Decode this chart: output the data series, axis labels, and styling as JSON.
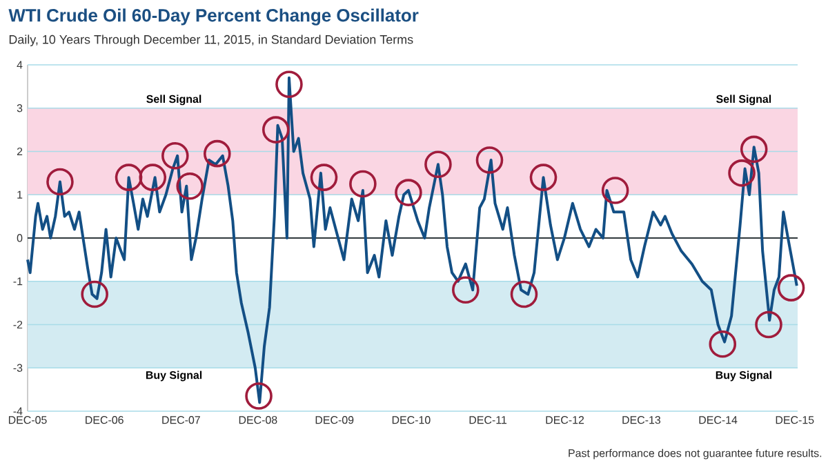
{
  "chart_data": {
    "type": "line",
    "title": "WTI Crude Oil 60-Day Percent Change Oscillator",
    "subtitle": "Daily, 10 Years Through December 11, 2015, in Standard Deviation Terms",
    "annotations": [
      "Past performance does not guarantee future results."
    ],
    "series": [
      {
        "color": "#134f85",
        "x": [
          "2005-12-01",
          "2005-12-13",
          "2006-01-08",
          "2006-01-19",
          "2006-02-10",
          "2006-03-03",
          "2006-03-20",
          "2006-04-12",
          "2006-05-04",
          "2006-05-26",
          "2006-06-16",
          "2006-07-12",
          "2006-08-03",
          "2006-08-25",
          "2006-09-13",
          "2006-10-04",
          "2006-10-27",
          "2006-11-18",
          "2006-12-09",
          "2007-01-01",
          "2007-01-26",
          "2007-02-18",
          "2007-03-06",
          "2007-03-27",
          "2007-04-19",
          "2007-05-11",
          "2007-06-02",
          "2007-06-24",
          "2007-07-30",
          "2007-08-21",
          "2007-09-20",
          "2007-10-23",
          "2007-11-14",
          "2007-12-05",
          "2007-12-27",
          "2008-01-19",
          "2008-02-10",
          "2008-03-10",
          "2008-04-12",
          "2008-05-14",
          "2008-06-16",
          "2008-07-12",
          "2008-08-03",
          "2008-08-21",
          "2008-09-13",
          "2008-10-16",
          "2008-11-18",
          "2008-12-09",
          "2009-01-01",
          "2009-01-26",
          "2009-02-18",
          "2009-03-06",
          "2009-03-27",
          "2009-04-19",
          "2009-04-29",
          "2009-05-21",
          "2009-06-13",
          "2009-07-04",
          "2009-08-07",
          "2009-08-25",
          "2009-09-27",
          "2009-10-19",
          "2009-11-10",
          "2009-12-13",
          "2010-01-15",
          "2010-02-21",
          "2010-03-24",
          "2010-04-15",
          "2010-05-07",
          "2010-06-09",
          "2010-07-01",
          "2010-08-03",
          "2010-09-02",
          "2010-10-04",
          "2010-10-27",
          "2010-11-18",
          "2011-01-01",
          "2011-02-03",
          "2011-02-25",
          "2011-04-08",
          "2011-04-29",
          "2011-05-21",
          "2011-06-13",
          "2011-07-12",
          "2011-08-17",
          "2011-09-20",
          "2011-10-23",
          "2011-11-14",
          "2011-12-16",
          "2012-01-04",
          "2012-02-10",
          "2012-03-03",
          "2012-04-05",
          "2012-05-07",
          "2012-06-09",
          "2012-07-08",
          "2012-08-21",
          "2012-09-24",
          "2012-10-27",
          "2012-11-29",
          "2013-01-08",
          "2013-02-14",
          "2013-03-27",
          "2013-04-29",
          "2013-06-02",
          "2013-06-20",
          "2013-07-23",
          "2013-09-09",
          "2013-10-12",
          "2013-11-14",
          "2013-12-16",
          "2014-01-26",
          "2014-03-03",
          "2014-03-24",
          "2014-04-26",
          "2014-06-09",
          "2014-07-30",
          "2014-09-17",
          "2014-10-30",
          "2014-12-01",
          "2015-01-01",
          "2015-02-03",
          "2015-03-16",
          "2015-04-08",
          "2015-04-29",
          "2015-05-21",
          "2015-06-13",
          "2015-07-01",
          "2015-08-03",
          "2015-08-25",
          "2015-09-17",
          "2015-10-08",
          "2015-10-30",
          "2015-12-11"
        ],
        "values": [
          -0.5,
          -0.8,
          0.5,
          0.8,
          0.2,
          0.5,
          0.0,
          0.5,
          1.3,
          0.5,
          0.6,
          0.2,
          0.6,
          -0.1,
          -0.7,
          -1.3,
          -1.4,
          -0.8,
          0.2,
          -0.9,
          0.0,
          -0.3,
          -0.5,
          1.4,
          0.8,
          0.2,
          0.9,
          0.5,
          1.4,
          0.6,
          1.0,
          1.6,
          1.9,
          0.6,
          1.2,
          -0.5,
          0.0,
          0.9,
          1.8,
          1.7,
          1.9,
          1.2,
          0.4,
          -0.8,
          -1.5,
          -2.2,
          -3.0,
          -3.8,
          -2.5,
          -1.6,
          0.5,
          2.6,
          2.3,
          0.0,
          3.7,
          2.0,
          2.3,
          1.5,
          0.9,
          -0.2,
          1.5,
          0.2,
          0.7,
          0.1,
          -0.5,
          0.9,
          0.4,
          1.1,
          -0.8,
          -0.4,
          -0.9,
          0.4,
          -0.4,
          0.5,
          1.0,
          1.1,
          0.4,
          0.0,
          0.7,
          1.7,
          1.0,
          -0.2,
          -0.8,
          -1.0,
          -0.6,
          -1.2,
          0.7,
          0.9,
          1.8,
          0.8,
          0.2,
          0.7,
          -0.4,
          -1.2,
          -1.3,
          -0.8,
          1.4,
          0.3,
          -0.5,
          0.0,
          0.8,
          0.2,
          -0.2,
          0.2,
          0.0,
          1.1,
          0.6,
          0.6,
          -0.5,
          -0.9,
          -0.2,
          0.6,
          0.3,
          0.5,
          0.1,
          -0.3,
          -0.6,
          -1.0,
          -1.2,
          -2.0,
          -2.4,
          -1.8,
          0.3,
          1.6,
          1.0,
          2.1,
          1.5,
          -0.3,
          -1.9,
          -1.2,
          -0.9,
          0.6,
          0.0,
          -1.1
        ]
      },
      {
        "type": "scatter",
        "color": "#a01c3c",
        "marker": "circle",
        "x": [
          "2006-05-04",
          "2006-10-16",
          "2007-03-27",
          "2007-07-19",
          "2007-11-03",
          "2008-01-12",
          "2008-05-21",
          "2008-12-05",
          "2009-02-25",
          "2009-04-29",
          "2009-10-12",
          "2010-04-15",
          "2010-11-18",
          "2011-04-08",
          "2011-08-17",
          "2011-12-09",
          "2012-05-21",
          "2012-08-21",
          "2013-07-30",
          "2014-12-23",
          "2015-03-24",
          "2015-05-21",
          "2015-07-30",
          "2015-11-14"
        ],
        "values": [
          1.3,
          -1.3,
          1.4,
          1.4,
          1.9,
          1.2,
          1.95,
          -3.65,
          2.5,
          3.55,
          1.4,
          1.25,
          1.05,
          1.7,
          -1.2,
          1.8,
          -1.3,
          1.4,
          1.1,
          -2.45,
          1.5,
          2.05,
          -2.0,
          -1.15
        ]
      }
    ],
    "xlim": [
      "2005-12-01",
      "2015-12-15"
    ],
    "xticks": [
      {
        "value": "2005-12-01",
        "label": "DEC-05"
      },
      {
        "value": "2006-12-01",
        "label": "DEC-06"
      },
      {
        "value": "2007-12-01",
        "label": "DEC-07"
      },
      {
        "value": "2008-12-01",
        "label": "DEC-08"
      },
      {
        "value": "2009-12-01",
        "label": "DEC-09"
      },
      {
        "value": "2010-12-01",
        "label": "DEC-10"
      },
      {
        "value": "2011-12-01",
        "label": "DEC-11"
      },
      {
        "value": "2012-12-01",
        "label": "DEC-12"
      },
      {
        "value": "2013-12-01",
        "label": "DEC-13"
      },
      {
        "value": "2014-12-01",
        "label": "DEC-14"
      },
      {
        "value": "2015-12-01",
        "label": "DEC-15"
      }
    ],
    "ylim": [
      -4,
      4
    ],
    "yticks": [
      -4,
      -3,
      -2,
      -1,
      0,
      1,
      2,
      3,
      4
    ],
    "grid": "y",
    "bands": [
      {
        "axis": "y",
        "from": 1,
        "to": 3,
        "label": "Sell Signal",
        "color": "#fad6e3"
      },
      {
        "axis": "y",
        "from": -3,
        "to": -1,
        "label": "Buy Signal",
        "color": "#d3ebf2"
      }
    ],
    "ref_lines": [
      {
        "axis": "y",
        "value": 0,
        "color": "#000000"
      }
    ]
  }
}
